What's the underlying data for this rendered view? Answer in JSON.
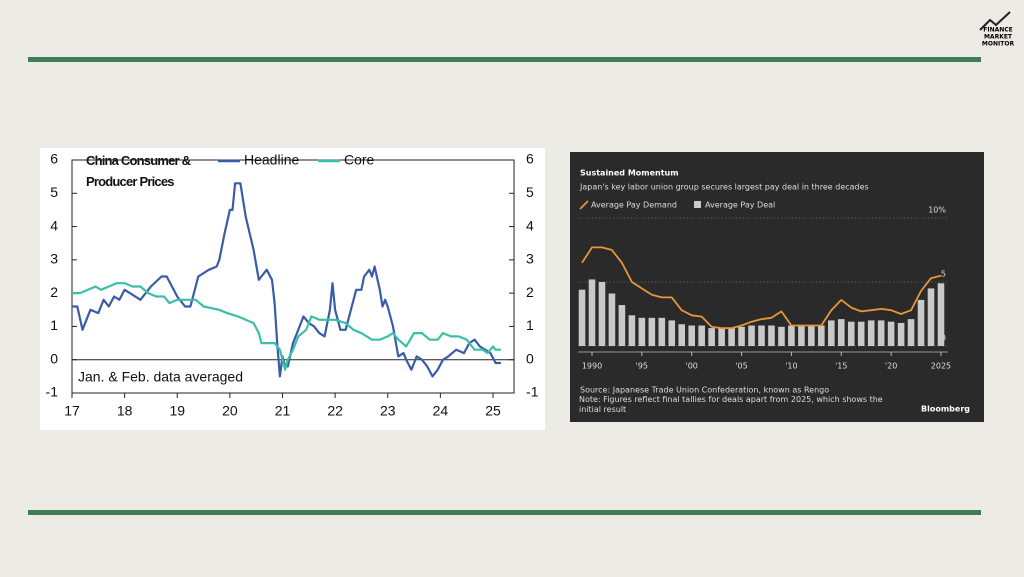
{
  "logo": {
    "lines": [
      "FINANCE",
      "MARKET",
      "MONITOR"
    ]
  },
  "chart_data": [
    {
      "type": "line",
      "title": "China Consumer & Producer Prices",
      "annotation": "Jan. & Feb. data averaged",
      "xlim": [
        17,
        25.4
      ],
      "xticks": [
        17,
        18,
        19,
        20,
        21,
        22,
        23,
        24,
        25
      ],
      "ylim": [
        -1,
        6
      ],
      "yticks": [
        -1,
        0,
        1,
        2,
        3,
        4,
        5,
        6
      ],
      "y2lim": [
        -1,
        6
      ],
      "y2ticks": [
        -1,
        0,
        1,
        2,
        3,
        4,
        5,
        6
      ],
      "series": [
        {
          "name": "Headline",
          "color": "#3a5ca8",
          "x": [
            17.0,
            17.1,
            17.2,
            17.35,
            17.5,
            17.6,
            17.7,
            17.8,
            17.9,
            18.0,
            18.1,
            18.3,
            18.5,
            18.7,
            18.8,
            18.9,
            19.0,
            19.15,
            19.25,
            19.4,
            19.6,
            19.75,
            19.8,
            19.9,
            20.0,
            20.05,
            20.1,
            20.2,
            20.3,
            20.45,
            20.55,
            20.6,
            20.7,
            20.8,
            20.85,
            20.9,
            20.95,
            21.0,
            21.05,
            21.1,
            21.2,
            21.3,
            21.4,
            21.5,
            21.6,
            21.7,
            21.8,
            21.9,
            21.95,
            22.0,
            22.1,
            22.2,
            22.3,
            22.4,
            22.5,
            22.55,
            22.65,
            22.7,
            22.75,
            22.85,
            22.9,
            22.95,
            23.0,
            23.1,
            23.2,
            23.3,
            23.35,
            23.45,
            23.55,
            23.65,
            23.75,
            23.85,
            23.95,
            24.05,
            24.15,
            24.3,
            24.45,
            24.55,
            24.65,
            24.75,
            24.85,
            24.95,
            25.05,
            25.15
          ],
          "values": [
            1.6,
            1.6,
            0.9,
            1.5,
            1.4,
            1.8,
            1.6,
            1.9,
            1.8,
            2.1,
            2.0,
            1.8,
            2.2,
            2.5,
            2.5,
            2.2,
            1.9,
            1.6,
            1.6,
            2.5,
            2.7,
            2.8,
            3.0,
            3.8,
            4.5,
            4.5,
            5.3,
            5.3,
            4.3,
            3.3,
            2.4,
            2.5,
            2.7,
            2.4,
            1.7,
            0.5,
            -0.5,
            0.1,
            -0.2,
            -0.2,
            0.5,
            0.9,
            1.3,
            1.1,
            1.0,
            0.8,
            0.7,
            1.5,
            2.3,
            1.5,
            0.9,
            0.9,
            1.5,
            2.1,
            2.1,
            2.5,
            2.7,
            2.5,
            2.8,
            2.1,
            1.6,
            1.8,
            1.6,
            1.0,
            0.1,
            0.2,
            0.0,
            -0.3,
            0.1,
            0.0,
            -0.2,
            -0.5,
            -0.3,
            0.0,
            0.1,
            0.3,
            0.2,
            0.5,
            0.6,
            0.4,
            0.3,
            0.2,
            -0.1,
            -0.1
          ]
        },
        {
          "name": "Core",
          "color": "#3cbfa6",
          "x": [
            17.0,
            17.15,
            17.3,
            17.45,
            17.55,
            17.7,
            17.85,
            18.0,
            18.15,
            18.3,
            18.45,
            18.6,
            18.75,
            18.85,
            19.0,
            19.2,
            19.35,
            19.5,
            19.8,
            19.95,
            20.15,
            20.3,
            20.45,
            20.55,
            20.6,
            20.85,
            20.95,
            21.05,
            21.1,
            21.2,
            21.3,
            21.45,
            21.55,
            21.7,
            21.9,
            22.0,
            22.2,
            22.35,
            22.5,
            22.7,
            22.85,
            23.0,
            23.1,
            23.2,
            23.35,
            23.5,
            23.65,
            23.8,
            23.95,
            24.05,
            24.2,
            24.35,
            24.5,
            24.65,
            24.8,
            24.9,
            25.0,
            25.05,
            25.15
          ],
          "values": [
            2.0,
            2.0,
            2.1,
            2.2,
            2.1,
            2.2,
            2.3,
            2.3,
            2.2,
            2.2,
            2.0,
            1.9,
            1.9,
            1.7,
            1.8,
            1.8,
            1.8,
            1.6,
            1.5,
            1.4,
            1.3,
            1.2,
            1.1,
            0.8,
            0.5,
            0.5,
            0.3,
            -0.3,
            0.0,
            0.3,
            0.7,
            0.9,
            1.3,
            1.2,
            1.2,
            1.2,
            1.1,
            0.9,
            0.8,
            0.6,
            0.6,
            0.7,
            0.8,
            0.6,
            0.4,
            0.8,
            0.8,
            0.6,
            0.6,
            0.8,
            0.7,
            0.7,
            0.6,
            0.3,
            0.3,
            0.2,
            0.4,
            0.3,
            0.3
          ]
        }
      ]
    },
    {
      "type": "combo",
      "title": "Sustained Momentum",
      "subtitle": "Japan's key labor union group secures largest pay deal in three decades",
      "source": "Source: Japanese Trade Union Confederation, known as Rengo",
      "note": "Note: Figures reflect final tallies for deals apart from 2025, which shows the initial result",
      "credit": "Bloomberg",
      "x": [
        1989,
        1990,
        1991,
        1992,
        1993,
        1994,
        1995,
        1996,
        1997,
        1998,
        1999,
        2000,
        2001,
        2002,
        2003,
        2004,
        2005,
        2006,
        2007,
        2008,
        2009,
        2010,
        2011,
        2012,
        2013,
        2014,
        2015,
        2016,
        2017,
        2018,
        2019,
        2020,
        2021,
        2022,
        2023,
        2024,
        2025
      ],
      "xlim": [
        1988.2,
        2025.8
      ],
      "xticks": [
        1990,
        {
          "value": 1995,
          "label": "'95"
        },
        {
          "value": 2000,
          "label": "'00"
        },
        {
          "value": 2005,
          "label": "'05"
        },
        {
          "value": 2010,
          "label": "'10"
        },
        {
          "value": 2015,
          "label": "'15"
        },
        {
          "value": 2020,
          "label": "'20"
        },
        2025
      ],
      "ylim": [
        0,
        10
      ],
      "yticks": [
        0,
        5,
        {
          "value": 10,
          "label": "10%"
        }
      ],
      "grid": true,
      "series": [
        {
          "name": "Average Pay Demand",
          "type": "line",
          "color": "#e8953a",
          "values": [
            6.5,
            7.7,
            7.7,
            7.5,
            6.5,
            5.0,
            4.5,
            4.0,
            3.8,
            3.8,
            2.8,
            2.4,
            2.3,
            1.5,
            1.4,
            1.4,
            1.6,
            1.9,
            2.1,
            2.2,
            2.7,
            1.6,
            1.6,
            1.6,
            1.6,
            2.8,
            3.6,
            3.0,
            2.7,
            2.8,
            2.9,
            2.8,
            2.5,
            2.8,
            4.3,
            5.3,
            5.5
          ]
        },
        {
          "name": "Average Pay Deal",
          "type": "bar",
          "color": "#c9c9c9",
          "values": [
            4.4,
            5.2,
            5.0,
            4.1,
            3.2,
            2.4,
            2.2,
            2.2,
            2.2,
            2.0,
            1.7,
            1.6,
            1.6,
            1.4,
            1.4,
            1.4,
            1.5,
            1.6,
            1.6,
            1.6,
            1.5,
            1.6,
            1.6,
            1.6,
            1.6,
            2.0,
            2.1,
            1.9,
            1.9,
            2.0,
            2.0,
            1.9,
            1.8,
            2.1,
            3.6,
            4.5,
            4.9
          ]
        }
      ]
    }
  ]
}
